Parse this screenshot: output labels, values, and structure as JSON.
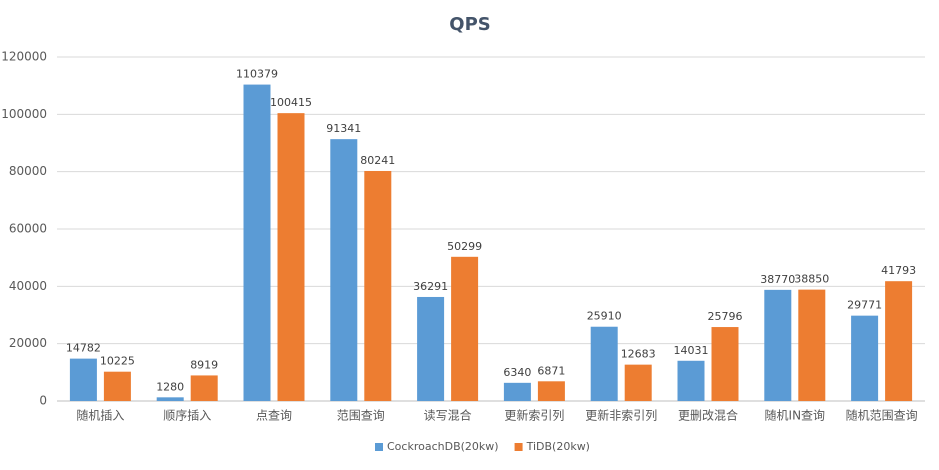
{
  "chart_data": {
    "type": "bar",
    "title": "QPS",
    "categories": [
      "随机插入",
      "顺序插入",
      "点查询",
      "范围查询",
      "读写混合",
      "更新索引列",
      "更新非索引列",
      "更删改混合",
      "随机IN查询",
      "随机范围查询"
    ],
    "series": [
      {
        "name": "CockroachDB(20kw)",
        "color": "#5b9bd5",
        "values": [
          14782,
          1280,
          110379,
          91341,
          36291,
          6340,
          25910,
          14031,
          38770,
          29771
        ]
      },
      {
        "name": "TiDB(20kw)",
        "color": "#ed7d31",
        "values": [
          10225,
          8919,
          100415,
          80241,
          50299,
          6871,
          12683,
          25796,
          38850,
          41793
        ]
      }
    ],
    "ylim": [
      0,
      120000
    ],
    "yticks": [
      0,
      20000,
      40000,
      60000,
      80000,
      100000,
      120000
    ],
    "grid": true,
    "legend": "bottom"
  }
}
